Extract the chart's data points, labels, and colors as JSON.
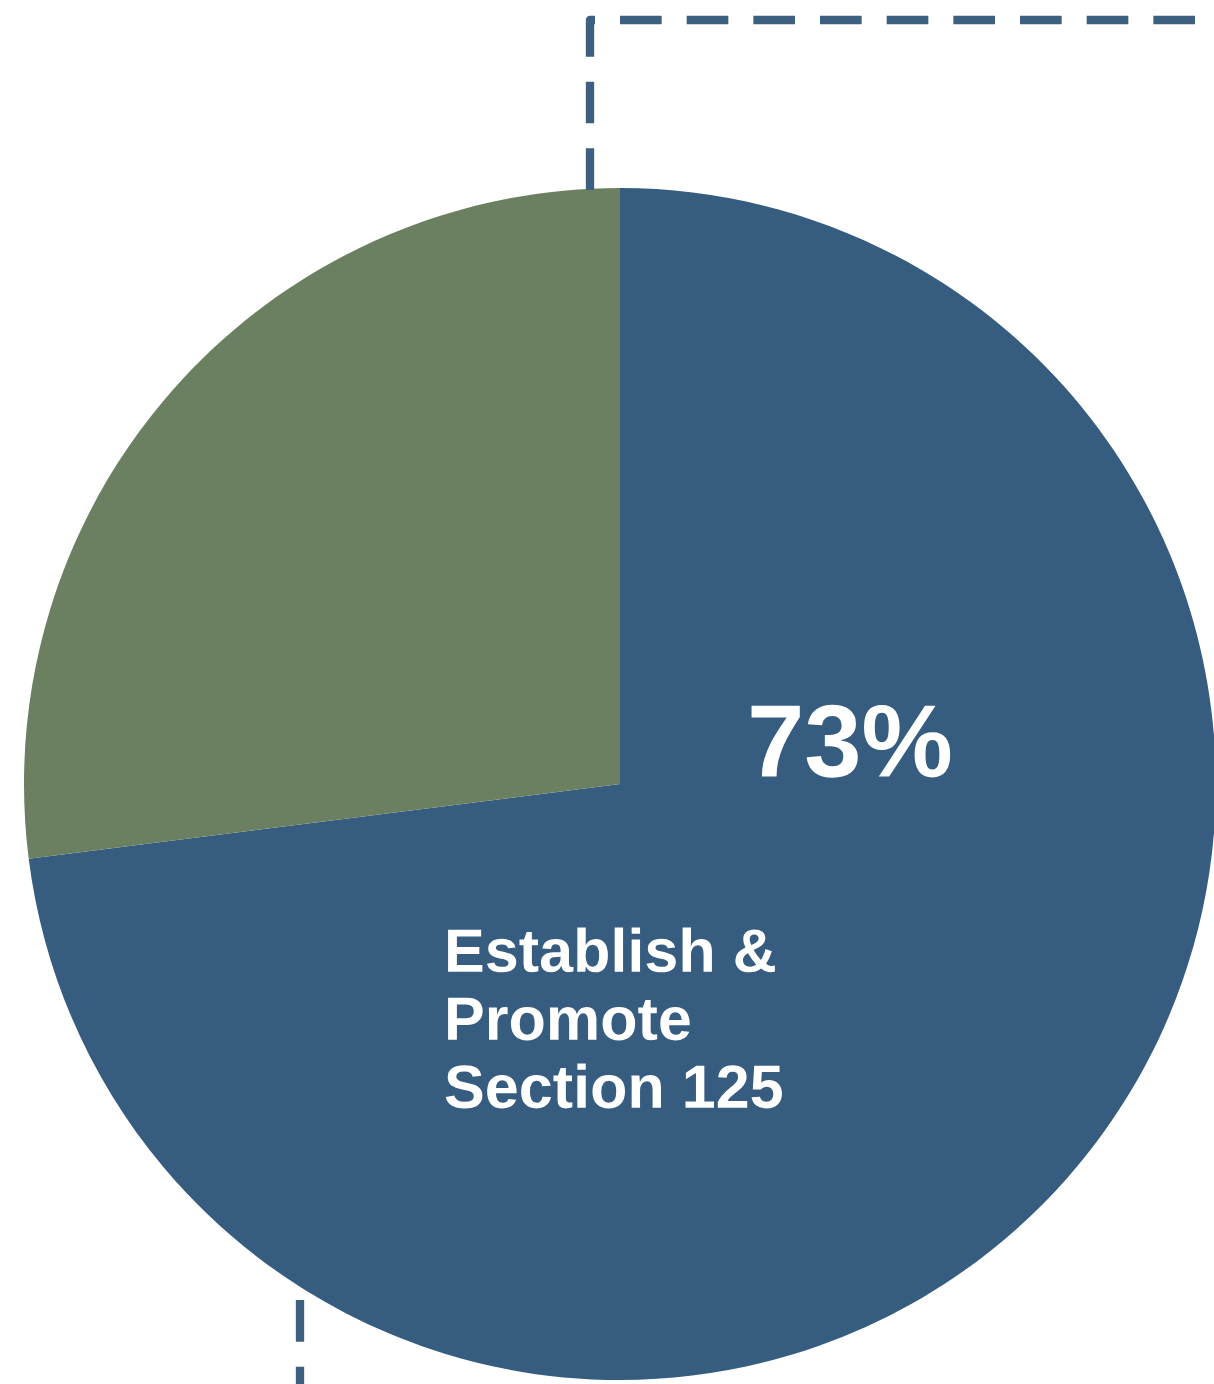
{
  "chart_data": {
    "type": "pie",
    "categories": [
      "Establish &\nPromote\nSection 125",
      null
    ],
    "values": [
      73,
      27
    ],
    "colors": [
      "#365d80",
      "#6a8060"
    ],
    "value_labels": [
      "73%",
      null
    ],
    "legend": false
  }
}
